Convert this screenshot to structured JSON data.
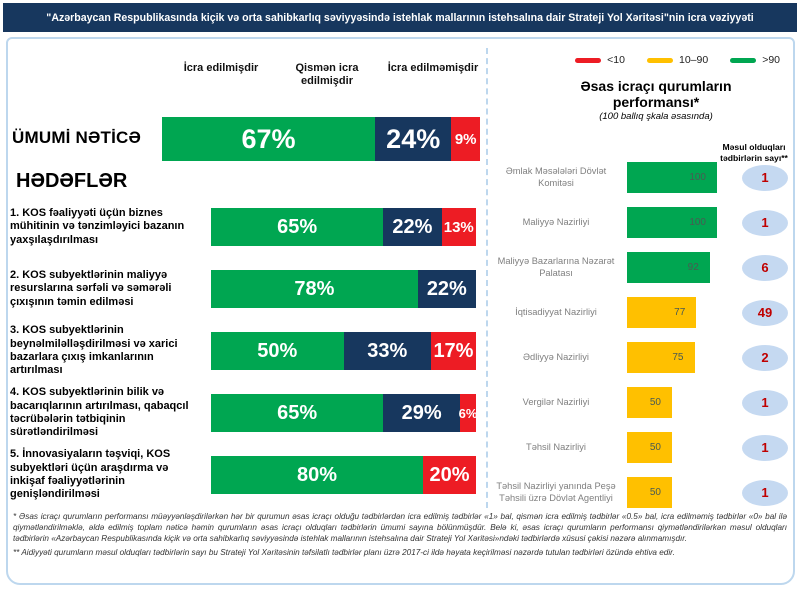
{
  "title": "\"Azərbaycan Respublikasında kiçik və orta sahibkarlıq səviyyəsində istehlak mallarının istehsalına dair Strateji Yol Xəritəsi\"nin icra vəziyyəti",
  "legend": {
    "items": [
      {
        "label": "<10",
        "color": "#ED1C24",
        "icon": "red-dash-icon"
      },
      {
        "label": "10–90",
        "color": "#FFC000",
        "icon": "yellow-dash-icon"
      },
      {
        "label": ">90",
        "color": "#00A651",
        "icon": "green-dash-icon"
      }
    ]
  },
  "left_chart": {
    "columns": [
      "İcra edilmişdir",
      "Qismən icra edilmişdir",
      "İcra edilməmişdir"
    ],
    "overall_label": "ÜMUMİ NƏTİCƏ",
    "goals_label": "HƏDƏFLƏR",
    "overall": {
      "done": 67,
      "partial": 24,
      "not_done": 9
    },
    "goals": [
      {
        "label": "1. KOS fəaliyyəti üçün biznes mühitinin və tənzimləyici bazanın yaxşılaşdırılması",
        "done": 65,
        "partial": 22,
        "not_done": 13
      },
      {
        "label": "2. KOS subyektlərinin maliyyə resurslarına sərfəli və səmərəli çıxışının təmin edilməsi",
        "done": 78,
        "partial": 22,
        "not_done": 0
      },
      {
        "label": "3. KOS subyektlərinin beynəlmiləlləşdirilməsi və xarici bazarlara çıxış imkanlarının artırılması",
        "done": 50,
        "partial": 33,
        "not_done": 17
      },
      {
        "label": "4. KOS subyektlərinin bilik və bacarıqlarının artırılması, qabaqcıl təcrübələrin tətbiqinin sürətləndirilməsi",
        "done": 65,
        "partial": 29,
        "not_done": 6
      },
      {
        "label": "5. İnnovasiyaların təşviqi, KOS subyektləri üçün araşdırma və inkişaf fəaliyyətlərinin genişləndirilməsi",
        "done": 80,
        "partial": 0,
        "not_done": 20
      }
    ]
  },
  "right_chart": {
    "title": "Əsas icraçı qurumların performansı*",
    "subtitle": "(100 ballıq şkala əsasında)",
    "count_header": "Məsul olduqları tədbirlərin sayı**",
    "rows": [
      {
        "label": "Əmlak Məsələləri Dövlət Komitəsi",
        "score": 100,
        "count": 1
      },
      {
        "label": "Maliyyə Nazirliyi",
        "score": 100,
        "count": 1
      },
      {
        "label": "Maliyyə Bazarlarına Nəzarət Palatası",
        "score": 92,
        "count": 6
      },
      {
        "label": "İqtisadiyyat Nazirliyi",
        "score": 77,
        "count": 49
      },
      {
        "label": "Ədliyyə Nazirliyi",
        "score": 75,
        "count": 2
      },
      {
        "label": "Vergilər Nazirliyi",
        "score": 50,
        "count": 1
      },
      {
        "label": "Təhsil Nazirliyi",
        "score": 50,
        "count": 1
      },
      {
        "label": "Təhsil Nazirliyi yanında Peşə Təhsili üzrə Dövlət Agentliyi",
        "score": 50,
        "count": 1
      }
    ]
  },
  "footnotes": [
    "*  Əsas icraçı qurumların performansı müəyyənləşdirilərkən hər bir qurumun əsas icraçı olduğu tədbirlərdən icra edilmiş tədbirlər «1» bal, qismən icra edilmiş tədbirlər «0.5» bal, icra edilməmiş tədbirlər «0» bal ilə qiymətləndirilməklə, əldə edilmiş toplam nəticə həmin qurumların əsas icraçı olduqları tədbirlərin ümumi sayına bölünmüşdür. Belə ki, əsas icraçı qurumların performansı qiymətləndirilərkən məsul olduqları tədbirlərin «Azərbaycan Respublikasında kiçik və orta sahibkarlıq səviyyəsində istehlak mallarının istehsalına dair Strateji Yol Xəritəsi»ndəki tədbirlərdə xüsusi çəkisi nəzərə alınmamışdır.",
    "** Aidiyyəti qurumların məsul olduqları tədbirlərin sayı bu Strateji Yol Xəritəsinin təfsilatlı tədbirlər planı üzrə 2017-ci ildə həyata keçirilməsi nəzərdə tutulan tədbirləri özündə ehtiva edir."
  ],
  "colors": {
    "navy": "#17375E",
    "green": "#00A651",
    "red": "#ED1C24",
    "yellow": "#FFC000",
    "badge_bg": "#C5D9F1",
    "badge_text": "#C00000",
    "border_blue": "#BDD7EE"
  },
  "chart_data": [
    {
      "type": "bar",
      "orientation": "horizontal",
      "stacked": true,
      "title": "İcra vəziyyəti (%)",
      "categories": [
        "ÜMUMİ NƏTİCƏ",
        "1. KOS fəaliyyəti üçün biznes mühitinin və tənzimləyici bazanın yaxşılaşdırılması",
        "2. KOS subyektlərinin maliyyə resurslarına sərfəli və səmərəli çıxışının təmin edilməsi",
        "3. KOS subyektlərinin beynəlmiləlləşdirilməsi və xarici bazarlara çıxış imkanlarının artırılması",
        "4. KOS subyektlərinin bilik və bacarıqlarının artırılması, qabaqcıl təcrübələrin tətbiqinin sürətləndirilməsi",
        "5. İnnovasiyaların təşviqi, KOS subyektləri üçün araşdırma və inkişaf fəaliyyətlərinin genişləndirilməsi"
      ],
      "series": [
        {
          "name": "İcra edilmişdir",
          "color": "#00A651",
          "values": [
            67,
            65,
            78,
            50,
            65,
            80
          ]
        },
        {
          "name": "Qismən icra edilmişdir",
          "color": "#17375E",
          "values": [
            24,
            22,
            22,
            33,
            29,
            0
          ]
        },
        {
          "name": "İcra edilməmişdir",
          "color": "#ED1C24",
          "values": [
            9,
            13,
            0,
            17,
            6,
            20
          ]
        }
      ],
      "xlim": [
        0,
        100
      ],
      "xlabel": "",
      "ylabel": "",
      "grid": false,
      "legend_position": "top"
    },
    {
      "type": "bar",
      "orientation": "horizontal",
      "title": "Əsas icraçı qurumların performansı (100 ballıq şkala əsasında)",
      "categories": [
        "Əmlak Məsələləri Dövlət Komitəsi",
        "Maliyyə Nazirliyi",
        "Maliyyə Bazarlarına Nəzarət Palatası",
        "İqtisadiyyat Nazirliyi",
        "Ədliyyə Nazirliyi",
        "Vergilər Nazirliyi",
        "Təhsil Nazirliyi",
        "Təhsil Nazirliyi yanında Peşə Təhsili üzrə Dövlət Agentliyi"
      ],
      "values": [
        100,
        100,
        92,
        77,
        75,
        50,
        50,
        50
      ],
      "counts": [
        1,
        1,
        6,
        49,
        2,
        1,
        1,
        1
      ],
      "color_rule": {
        "<10": "#ED1C24",
        "10-90": "#FFC000",
        ">90": "#00A651"
      },
      "xlim": [
        0,
        100
      ],
      "grid": false
    }
  ]
}
